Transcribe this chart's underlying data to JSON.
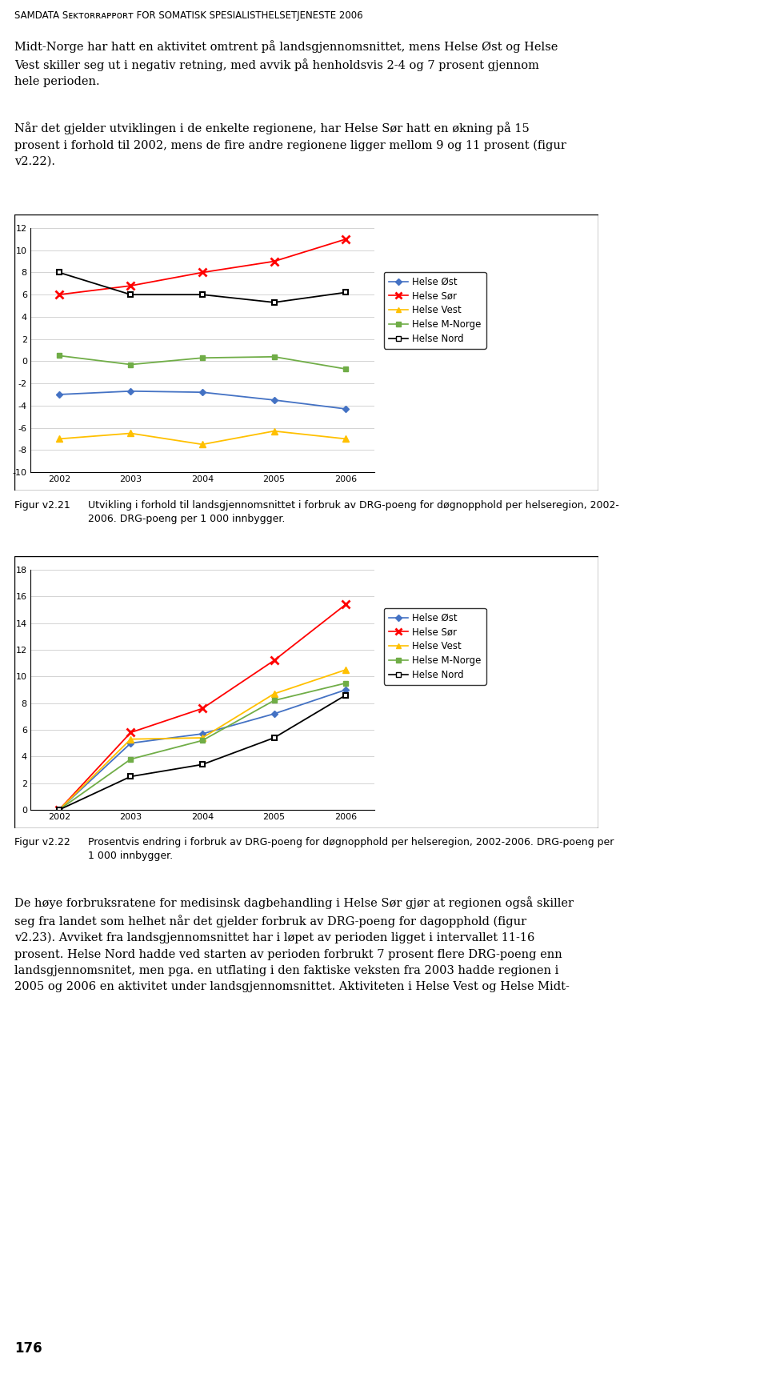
{
  "page_title": "SAMDATA Şektorrapport for somatisk spesialisthelsetjeneste 2006",
  "page_title_display": "SAMDATA Sᴇᴋᴛᴏʀʀᴀᴘᴘᴏʀᴛ for somatisk spesialisthelsetjeneste 2006",
  "header_text": "Midt-Norge har hatt en aktivitet omtrent på landsgjennomsnittet, mens Helse Øst og Helse\nVest skiller seg ut i negativ retning, med avvik på henholdsvis 2-4 og 7 prosent gjennom\nhele perioden.",
  "body_text": "Når det gjelder utviklingen i de enkelte regionene, har Helse Sør hatt en økning på 15\nprosent i forhold til 2002, mens de fire andre regionene ligger mellom 9 og 11 prosent (figur\nv2.22).",
  "chart1": {
    "years": [
      2002,
      2003,
      2004,
      2005,
      2006
    ],
    "helse_ost": [
      -3.0,
      -2.7,
      -2.8,
      -3.5,
      -4.3
    ],
    "helse_sor": [
      6.0,
      6.8,
      8.0,
      9.0,
      11.0
    ],
    "helse_vest": [
      -7.0,
      -6.5,
      -7.5,
      -6.3,
      -7.0
    ],
    "helse_mnorge": [
      0.5,
      -0.3,
      0.3,
      0.4,
      -0.7
    ],
    "helse_nord": [
      8.0,
      6.0,
      6.0,
      5.3,
      6.2
    ],
    "ylim": [
      -10,
      12
    ],
    "yticks": [
      -10,
      -8,
      -6,
      -4,
      -2,
      0,
      2,
      4,
      6,
      8,
      10,
      12
    ],
    "caption_label": "Figur v2.21",
    "caption_text": "Utvikling i forhold til landsgjennomsnittet i forbruk av DRG-poeng for døgnopphold per helseregion, 2002-\n2006. DRG-poeng per 1 000 innbygger."
  },
  "chart2": {
    "years": [
      2002,
      2003,
      2004,
      2005,
      2006
    ],
    "helse_ost": [
      0.0,
      5.0,
      5.7,
      7.2,
      9.0
    ],
    "helse_sor": [
      0.0,
      5.8,
      7.6,
      11.2,
      15.4
    ],
    "helse_vest": [
      0.0,
      5.3,
      5.4,
      8.7,
      10.5
    ],
    "helse_mnorge": [
      0.0,
      3.8,
      5.2,
      8.2,
      9.5
    ],
    "helse_nord": [
      0.0,
      2.5,
      3.4,
      5.4,
      8.6
    ],
    "ylim": [
      0,
      18
    ],
    "yticks": [
      0,
      2,
      4,
      6,
      8,
      10,
      12,
      14,
      16,
      18
    ],
    "caption_label": "Figur v2.22",
    "caption_text": "Prosentvis endring i forbruk av DRG-poeng for døgnopphold per helseregion, 2002-2006. DRG-poeng per\n1 000 innbygger."
  },
  "footer_text": "De høye forbruksratene for medisinsk dagbehandling i Helse Sør gjør at regionen også skiller\nseg fra landet som helhet når det gjelder forbruk av DRG-poeng for dagopphold (figur\nv2.23). Avviket fra landsgjennomsnittet har i løpet av perioden ligget i intervallet 11-16\nprosent. Helse Nord hadde ved starten av perioden forbrukt 7 prosent flere DRG-poeng enn\nlandsgjennomsnitet, men pga. en utflating i den faktiske veksten fra 2003 hadde regionen i\n2005 og 2006 en aktivitet under landsgjennomsnittet. Aktiviteten i Helse Vest og Helse Midt-",
  "page_number": "176",
  "colors": {
    "helse_ost": "#4472C4",
    "helse_sor": "#FF0000",
    "helse_vest": "#FFC000",
    "helse_mnorge": "#70AD47",
    "helse_nord": "#000000"
  }
}
